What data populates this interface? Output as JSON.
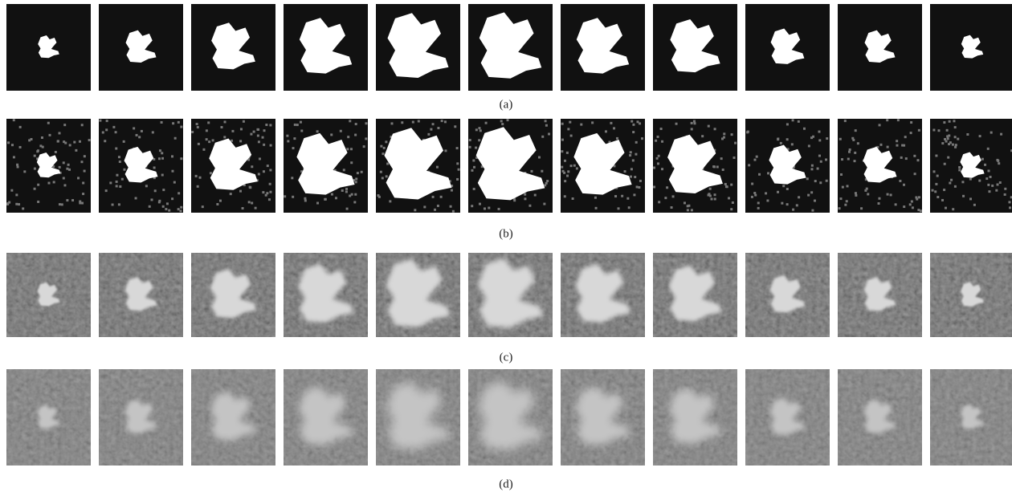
{
  "figure": {
    "panels": [
      {
        "label": "(a)"
      },
      {
        "label": "(b)"
      },
      {
        "label": "(c)"
      },
      {
        "label": "(d)"
      }
    ]
  }
}
